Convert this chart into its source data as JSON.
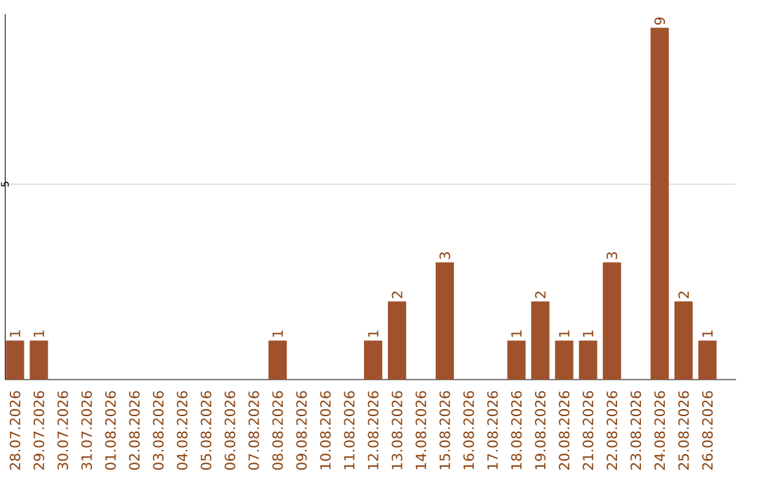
{
  "chart_data": {
    "type": "bar",
    "categories": [
      "28.07.2026",
      "29.07.2026",
      "30.07.2026",
      "31.07.2026",
      "01.08.2026",
      "02.08.2026",
      "03.08.2026",
      "04.08.2026",
      "05.08.2026",
      "06.08.2026",
      "07.08.2026",
      "08.08.2026",
      "09.08.2026",
      "10.08.2026",
      "11.08.2026",
      "12.08.2026",
      "13.08.2026",
      "14.08.2026",
      "15.08.2026",
      "16.08.2026",
      "17.08.2026",
      "18.08.2026",
      "19.08.2026",
      "20.08.2026",
      "21.08.2026",
      "22.08.2026",
      "23.08.2026",
      "24.08.2026",
      "25.08.2026",
      "26.08.2026"
    ],
    "values": [
      1,
      1,
      0,
      0,
      0,
      0,
      0,
      0,
      0,
      0,
      0,
      1,
      0,
      0,
      0,
      1,
      2,
      0,
      3,
      0,
      0,
      1,
      2,
      1,
      1,
      3,
      0,
      9,
      2,
      1
    ],
    "value_labels": [
      "1",
      "1",
      null,
      null,
      null,
      null,
      null,
      null,
      null,
      null,
      null,
      "1",
      null,
      null,
      null,
      "1",
      "2",
      null,
      "3",
      null,
      null,
      "1",
      "2",
      "1",
      "1",
      "3",
      null,
      "9",
      "2",
      "1"
    ],
    "color": "#a0522d",
    "ylim": [
      0,
      9.35
    ],
    "yticks": [
      5
    ],
    "grid": "y"
  }
}
